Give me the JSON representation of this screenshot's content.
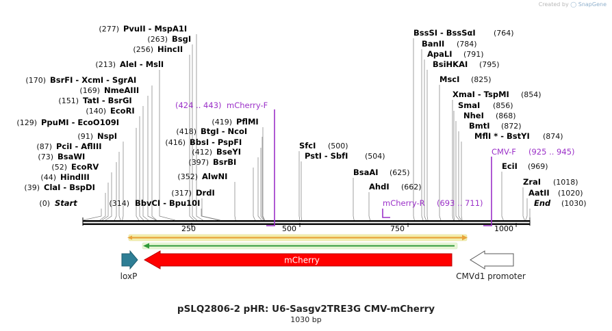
{
  "credit": {
    "prefix": "Created by",
    "brand": "SnapGene"
  },
  "title": "pSLQ2806-2 pHR: U6-Sasgv2TRE3G CMV-mCherry",
  "length_label": "1030 bp",
  "sequence_length": 1030,
  "ruler": {
    "ticks": [
      250,
      500,
      750,
      1000
    ]
  },
  "enzymes_left": [
    {
      "pos": "(0)",
      "label": "Start",
      "site": 0,
      "italic": true
    },
    {
      "pos": "(39)",
      "label": "ClaI  - BspDI",
      "site": 39
    },
    {
      "pos": "(44)",
      "label": "HindIII",
      "site": 44
    },
    {
      "pos": "(52)",
      "label": "EcoRV",
      "site": 52
    },
    {
      "pos": "(73)",
      "label": "BsaWI",
      "site": 73
    },
    {
      "pos": "(87)",
      "label": "PciI  - AflIII",
      "site": 87
    },
    {
      "pos": "(91)",
      "label": "NspI",
      "site": 91
    },
    {
      "pos": "(129)",
      "label": "PpuMI  - EcoO109I",
      "site": 129
    },
    {
      "pos": "(140)",
      "label": "EcoRI",
      "site": 140
    },
    {
      "pos": "(151)",
      "label": "TatI  - BsrGI",
      "site": 151
    },
    {
      "pos": "(169)",
      "label": "NmeAIII",
      "site": 169
    },
    {
      "pos": "(170)",
      "label": "BsrFI  - XcmI  - SgrAI",
      "site": 170
    },
    {
      "pos": "(213)",
      "label": "AleI  - MslI",
      "site": 213
    },
    {
      "pos": "(256)",
      "label": "HincII",
      "site": 256
    },
    {
      "pos": "(263)",
      "label": "BsgI",
      "site": 263
    },
    {
      "pos": "(277)",
      "label": "PvuII  - MspA1I",
      "site": 277
    }
  ],
  "enzymes_mid": [
    {
      "pos": "(314)",
      "label": "BbvCI  - Bpu10I",
      "site": 314,
      "pos_first": true
    },
    {
      "pos": "(317)",
      "label": "DrdI",
      "site": 317
    },
    {
      "pos": "(352)",
      "label": "AlwNI",
      "site": 352
    },
    {
      "pos": "(397)",
      "label": "BsrBI",
      "site": 397
    },
    {
      "pos": "(412)",
      "label": "BseYI",
      "site": 412
    },
    {
      "pos": "(416)",
      "label": "BbsI  - PspFI",
      "site": 416
    },
    {
      "pos": "(418)",
      "label": "BtgI  - NcoI",
      "site": 418
    },
    {
      "pos": "(419)",
      "label": "PflMI",
      "site": 419
    }
  ],
  "enzymes_center": [
    {
      "pos": "(500)",
      "label": "SfcI",
      "site": 500
    },
    {
      "pos": "(504)",
      "label": "PstI  - SbfI",
      "site": 504
    },
    {
      "pos": "(625)",
      "label": "BsaAI",
      "site": 625
    },
    {
      "pos": "(662)",
      "label": "AhdI",
      "site": 662
    }
  ],
  "enzymes_right": [
    {
      "pos": "(764)",
      "label": "BssSI  - BssSαI",
      "site": 764
    },
    {
      "pos": "(784)",
      "label": "BanII",
      "site": 784
    },
    {
      "pos": "(791)",
      "label": "ApaLI",
      "site": 791
    },
    {
      "pos": "(795)",
      "label": "BsiHKAI",
      "site": 795
    },
    {
      "pos": "(825)",
      "label": "MscI",
      "site": 825
    },
    {
      "pos": "(854)",
      "label": "XmaI  - TspMI",
      "site": 854
    },
    {
      "pos": "(856)",
      "label": "SmaI",
      "site": 856
    },
    {
      "pos": "(868)",
      "label": "NheI",
      "site": 868
    },
    {
      "pos": "(872)",
      "label": "BmtI",
      "site": 872
    },
    {
      "pos": "(874)",
      "label": "MflI *  - BstYI",
      "site": 874
    },
    {
      "pos": "(969)",
      "label": "EciI",
      "site": 969
    },
    {
      "pos": "(1018)",
      "label": "ZraI",
      "site": 1018
    },
    {
      "pos": "(1020)",
      "label": "AatII",
      "site": 1020
    },
    {
      "pos": "(1030)",
      "label": "End",
      "site": 1030,
      "italic": true
    }
  ],
  "primers": [
    {
      "name": "mCherry-F",
      "range": "(424 .. 443)"
    },
    {
      "name": "CMV-F",
      "range": "(925 .. 945)"
    },
    {
      "name": "mCherry-R",
      "range": "(693 .. 711)"
    }
  ],
  "features": [
    {
      "name": "loxP",
      "color": "#2e7e95"
    },
    {
      "name": "mCherry",
      "color": "#ff0000"
    },
    {
      "name": "CMVd1 promoter",
      "color": "#ffffff"
    }
  ],
  "colors": {
    "primer": "#9b30c8",
    "backbone": "#000000",
    "orf_orange": "#e8a33b",
    "orf_green": "#2f9a3a",
    "selection": "#f3f0b0"
  }
}
